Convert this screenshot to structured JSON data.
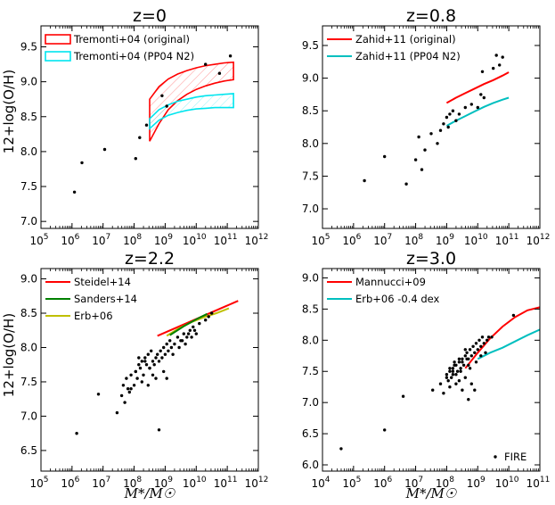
{
  "y_axis_label": "12+log(O/H)",
  "x_axis_label": "M*/M☉",
  "chart_data": [
    {
      "type": "scatter",
      "title": "z=0",
      "xlim": [
        5,
        12
      ],
      "ylim": [
        6.9,
        9.8
      ],
      "xticks": [
        5,
        6,
        7,
        8,
        9,
        10,
        11,
        12
      ],
      "yticks": [
        7.0,
        7.5,
        8.0,
        8.5,
        9.0,
        9.5
      ],
      "ytick_labels": [
        "7.0",
        "7.5",
        "8.0",
        "8.5",
        "9.0",
        "9.5"
      ],
      "legend": [
        {
          "label": "Tremonti+04 (original)",
          "color": "#ff0000",
          "style": "box"
        },
        {
          "label": "Tremonti+04 (PP04 N2)",
          "color": "#00e5ee",
          "style": "box"
        }
      ],
      "bands": [
        {
          "color": "#ff0000",
          "hatch": true,
          "x": [
            8.5,
            8.8,
            9.1,
            9.4,
            9.7,
            10.0,
            10.3,
            10.6,
            10.9,
            11.2
          ],
          "lower": [
            8.15,
            8.4,
            8.6,
            8.73,
            8.82,
            8.89,
            8.94,
            8.98,
            9.01,
            9.03
          ],
          "upper": [
            8.75,
            8.93,
            9.04,
            9.11,
            9.16,
            9.2,
            9.23,
            9.25,
            9.27,
            9.28
          ]
        },
        {
          "color": "#00e5ee",
          "hatch": true,
          "x": [
            8.5,
            8.8,
            9.1,
            9.4,
            9.7,
            10.0,
            10.3,
            10.6,
            10.9,
            11.2
          ],
          "lower": [
            8.33,
            8.45,
            8.52,
            8.56,
            8.59,
            8.61,
            8.62,
            8.63,
            8.63,
            8.63
          ],
          "upper": [
            8.47,
            8.6,
            8.67,
            8.72,
            8.75,
            8.78,
            8.8,
            8.81,
            8.82,
            8.83
          ]
        }
      ],
      "lines": [],
      "points": {
        "x": [
          6.08,
          6.32,
          7.05,
          8.05,
          8.18,
          8.4,
          8.9,
          9.05,
          10.3,
          10.75,
          11.1
        ],
        "y": [
          7.42,
          7.84,
          8.03,
          7.9,
          8.2,
          8.38,
          8.8,
          8.65,
          9.25,
          9.12,
          9.37
        ]
      }
    },
    {
      "type": "scatter",
      "title": "z=0.8",
      "xlim": [
        5,
        12
      ],
      "ylim": [
        6.7,
        9.8
      ],
      "xticks": [
        5,
        6,
        7,
        8,
        9,
        10,
        11,
        12
      ],
      "yticks": [
        7.0,
        7.5,
        8.0,
        8.5,
        9.0,
        9.5
      ],
      "ytick_labels": [
        "7.0",
        "7.5",
        "8.0",
        "8.5",
        "9.0",
        "9.5"
      ],
      "legend": [
        {
          "label": "Zahid+11 (original)",
          "color": "#ff0000",
          "style": "line"
        },
        {
          "label": "Zahid+11 (PP04 N2)",
          "color": "#00bfbf",
          "style": "line"
        }
      ],
      "bands": [],
      "lines": [
        {
          "color": "#ff0000",
          "x": [
            9.0,
            9.3,
            9.6,
            9.9,
            10.2,
            10.5,
            10.8,
            11.0
          ],
          "y": [
            8.62,
            8.7,
            8.77,
            8.84,
            8.91,
            8.97,
            9.04,
            9.09
          ]
        },
        {
          "color": "#00bfbf",
          "x": [
            9.0,
            9.3,
            9.6,
            9.9,
            10.2,
            10.5,
            10.8,
            11.0
          ],
          "y": [
            8.27,
            8.35,
            8.42,
            8.49,
            8.56,
            8.62,
            8.67,
            8.7
          ]
        }
      ],
      "points": {
        "x": [
          6.35,
          7.0,
          7.7,
          8.0,
          8.1,
          8.2,
          8.3,
          8.5,
          8.7,
          8.8,
          8.9,
          9.0,
          9.05,
          9.1,
          9.2,
          9.3,
          9.4,
          9.6,
          9.8,
          10.0,
          10.1,
          10.15,
          10.2,
          10.5,
          10.6,
          10.7,
          10.8
        ],
        "y": [
          7.43,
          7.8,
          7.38,
          7.75,
          8.1,
          7.6,
          7.9,
          8.15,
          8.0,
          8.2,
          8.3,
          8.4,
          8.25,
          8.45,
          8.5,
          8.35,
          8.45,
          8.55,
          8.6,
          8.55,
          8.75,
          9.1,
          8.7,
          9.15,
          9.35,
          9.2,
          9.32
        ]
      }
    },
    {
      "type": "scatter",
      "title": "z=2.2",
      "xlim": [
        5,
        12
      ],
      "ylim": [
        6.2,
        9.15
      ],
      "xticks": [
        5,
        6,
        7,
        8,
        9,
        10,
        11,
        12
      ],
      "yticks": [
        6.5,
        7.0,
        7.5,
        8.0,
        8.5,
        9.0
      ],
      "ytick_labels": [
        "6.5",
        "7.0",
        "7.5",
        "8.0",
        "8.5",
        "9.0"
      ],
      "legend": [
        {
          "label": "Steidel+14",
          "color": "#ff0000",
          "style": "line"
        },
        {
          "label": "Sanders+14",
          "color": "#008000",
          "style": "line"
        },
        {
          "label": "Erb+06",
          "color": "#bfbf00",
          "style": "line"
        }
      ],
      "bands": [],
      "lines": [
        {
          "color": "#ff0000",
          "x": [
            8.75,
            11.35
          ],
          "y": [
            8.17,
            8.68
          ]
        },
        {
          "color": "#bfbf00",
          "x": [
            9.05,
            9.45,
            9.85,
            10.25,
            10.65,
            11.05
          ],
          "y": [
            8.17,
            8.28,
            8.37,
            8.44,
            8.5,
            8.57
          ]
        },
        {
          "color": "#008000",
          "x": [
            9.15,
            9.6,
            10.0,
            10.35
          ],
          "y": [
            8.18,
            8.31,
            8.41,
            8.49
          ]
        }
      ],
      "points": {
        "x": [
          6.15,
          6.85,
          7.45,
          7.6,
          7.65,
          7.7,
          7.75,
          7.8,
          7.85,
          7.9,
          8.0,
          8.05,
          8.1,
          8.15,
          8.2,
          8.25,
          8.3,
          8.35,
          8.4,
          8.45,
          8.5,
          8.55,
          8.6,
          8.65,
          8.7,
          8.75,
          8.8,
          8.85,
          8.9,
          8.95,
          9.0,
          9.05,
          9.1,
          9.15,
          9.2,
          9.3,
          9.4,
          9.5,
          9.6,
          9.7,
          9.8,
          9.9,
          10.0,
          10.1,
          10.3,
          10.4,
          10.5,
          8.7,
          8.6,
          8.45,
          8.25,
          8.05,
          7.9,
          8.5,
          8.35,
          8.15,
          9.25,
          9.45,
          9.55,
          9.65,
          9.75,
          9.85,
          9.95,
          8.8,
          8.95,
          9.05
        ],
        "y": [
          6.75,
          7.32,
          7.05,
          7.3,
          7.45,
          7.2,
          7.55,
          7.4,
          7.35,
          7.6,
          7.45,
          7.65,
          7.55,
          7.75,
          7.7,
          7.8,
          7.6,
          7.85,
          7.75,
          7.9,
          7.7,
          7.95,
          7.8,
          7.75,
          7.85,
          7.9,
          7.8,
          7.95,
          7.85,
          8.0,
          7.9,
          8.05,
          7.95,
          8.1,
          8.0,
          8.05,
          8.15,
          8.1,
          8.2,
          8.15,
          8.25,
          8.3,
          8.2,
          8.35,
          8.4,
          8.45,
          8.5,
          7.55,
          7.6,
          7.45,
          7.5,
          7.65,
          7.4,
          7.7,
          7.8,
          7.85,
          7.9,
          8.0,
          8.1,
          8.05,
          8.2,
          8.15,
          8.25,
          6.8,
          7.65,
          7.55
        ]
      }
    },
    {
      "type": "scatter",
      "title": "z=3.0",
      "xlim": [
        4,
        11
      ],
      "ylim": [
        5.9,
        9.15
      ],
      "xticks": [
        4,
        5,
        6,
        7,
        8,
        9,
        10,
        11
      ],
      "yticks": [
        6.0,
        6.5,
        7.0,
        7.5,
        8.0,
        8.5,
        9.0
      ],
      "ytick_labels": [
        "6.0",
        "6.5",
        "7.0",
        "7.5",
        "8.0",
        "8.5",
        "9.0"
      ],
      "legend": [
        {
          "label": "Mannucci+09",
          "color": "#ff0000",
          "style": "line"
        },
        {
          "label": "Erb+06 -0.4 dex",
          "color": "#00bfbf",
          "style": "line"
        }
      ],
      "point_legend": "FIRE",
      "bands": [],
      "lines": [
        {
          "color": "#ff0000",
          "x": [
            8.6,
            9.0,
            9.4,
            9.8,
            10.2,
            10.6,
            11.0
          ],
          "y": [
            7.55,
            7.8,
            8.03,
            8.22,
            8.37,
            8.48,
            8.53
          ]
        },
        {
          "color": "#00bfbf",
          "x": [
            9.0,
            9.4,
            9.8,
            10.2,
            10.6,
            11.0
          ],
          "y": [
            7.7,
            7.8,
            7.88,
            7.98,
            8.08,
            8.17
          ]
        }
      ],
      "points": {
        "x": [
          4.6,
          6.0,
          6.6,
          7.55,
          7.8,
          7.9,
          8.0,
          8.05,
          8.1,
          8.15,
          8.2,
          8.25,
          8.3,
          8.35,
          8.4,
          8.45,
          8.5,
          8.55,
          8.6,
          8.65,
          8.7,
          8.75,
          8.8,
          8.85,
          8.9,
          8.95,
          9.0,
          9.05,
          9.1,
          9.15,
          9.2,
          9.3,
          9.35,
          9.45,
          10.15,
          8.0,
          8.1,
          8.2,
          8.3,
          8.4,
          8.5,
          8.6,
          8.7,
          8.8,
          8.1,
          8.3,
          8.5,
          8.7,
          8.9,
          8.25,
          8.45,
          8.65,
          8.6,
          8.4,
          8.2,
          8.75,
          8.95,
          9.1,
          9.25
        ],
        "y": [
          6.26,
          6.56,
          7.1,
          7.2,
          7.3,
          7.15,
          7.45,
          7.35,
          7.5,
          7.4,
          7.55,
          7.6,
          7.45,
          7.5,
          7.65,
          7.55,
          7.7,
          7.6,
          7.75,
          7.8,
          7.7,
          7.85,
          7.75,
          7.9,
          7.8,
          7.95,
          7.85,
          8.0,
          7.9,
          8.05,
          7.95,
          8.0,
          8.05,
          8.05,
          8.4,
          7.4,
          7.55,
          7.45,
          7.6,
          7.7,
          7.65,
          7.85,
          7.6,
          7.3,
          7.25,
          7.3,
          7.2,
          7.05,
          7.2,
          7.65,
          7.5,
          7.7,
          7.4,
          7.35,
          7.5,
          7.55,
          7.65,
          7.75,
          7.8
        ]
      }
    }
  ]
}
